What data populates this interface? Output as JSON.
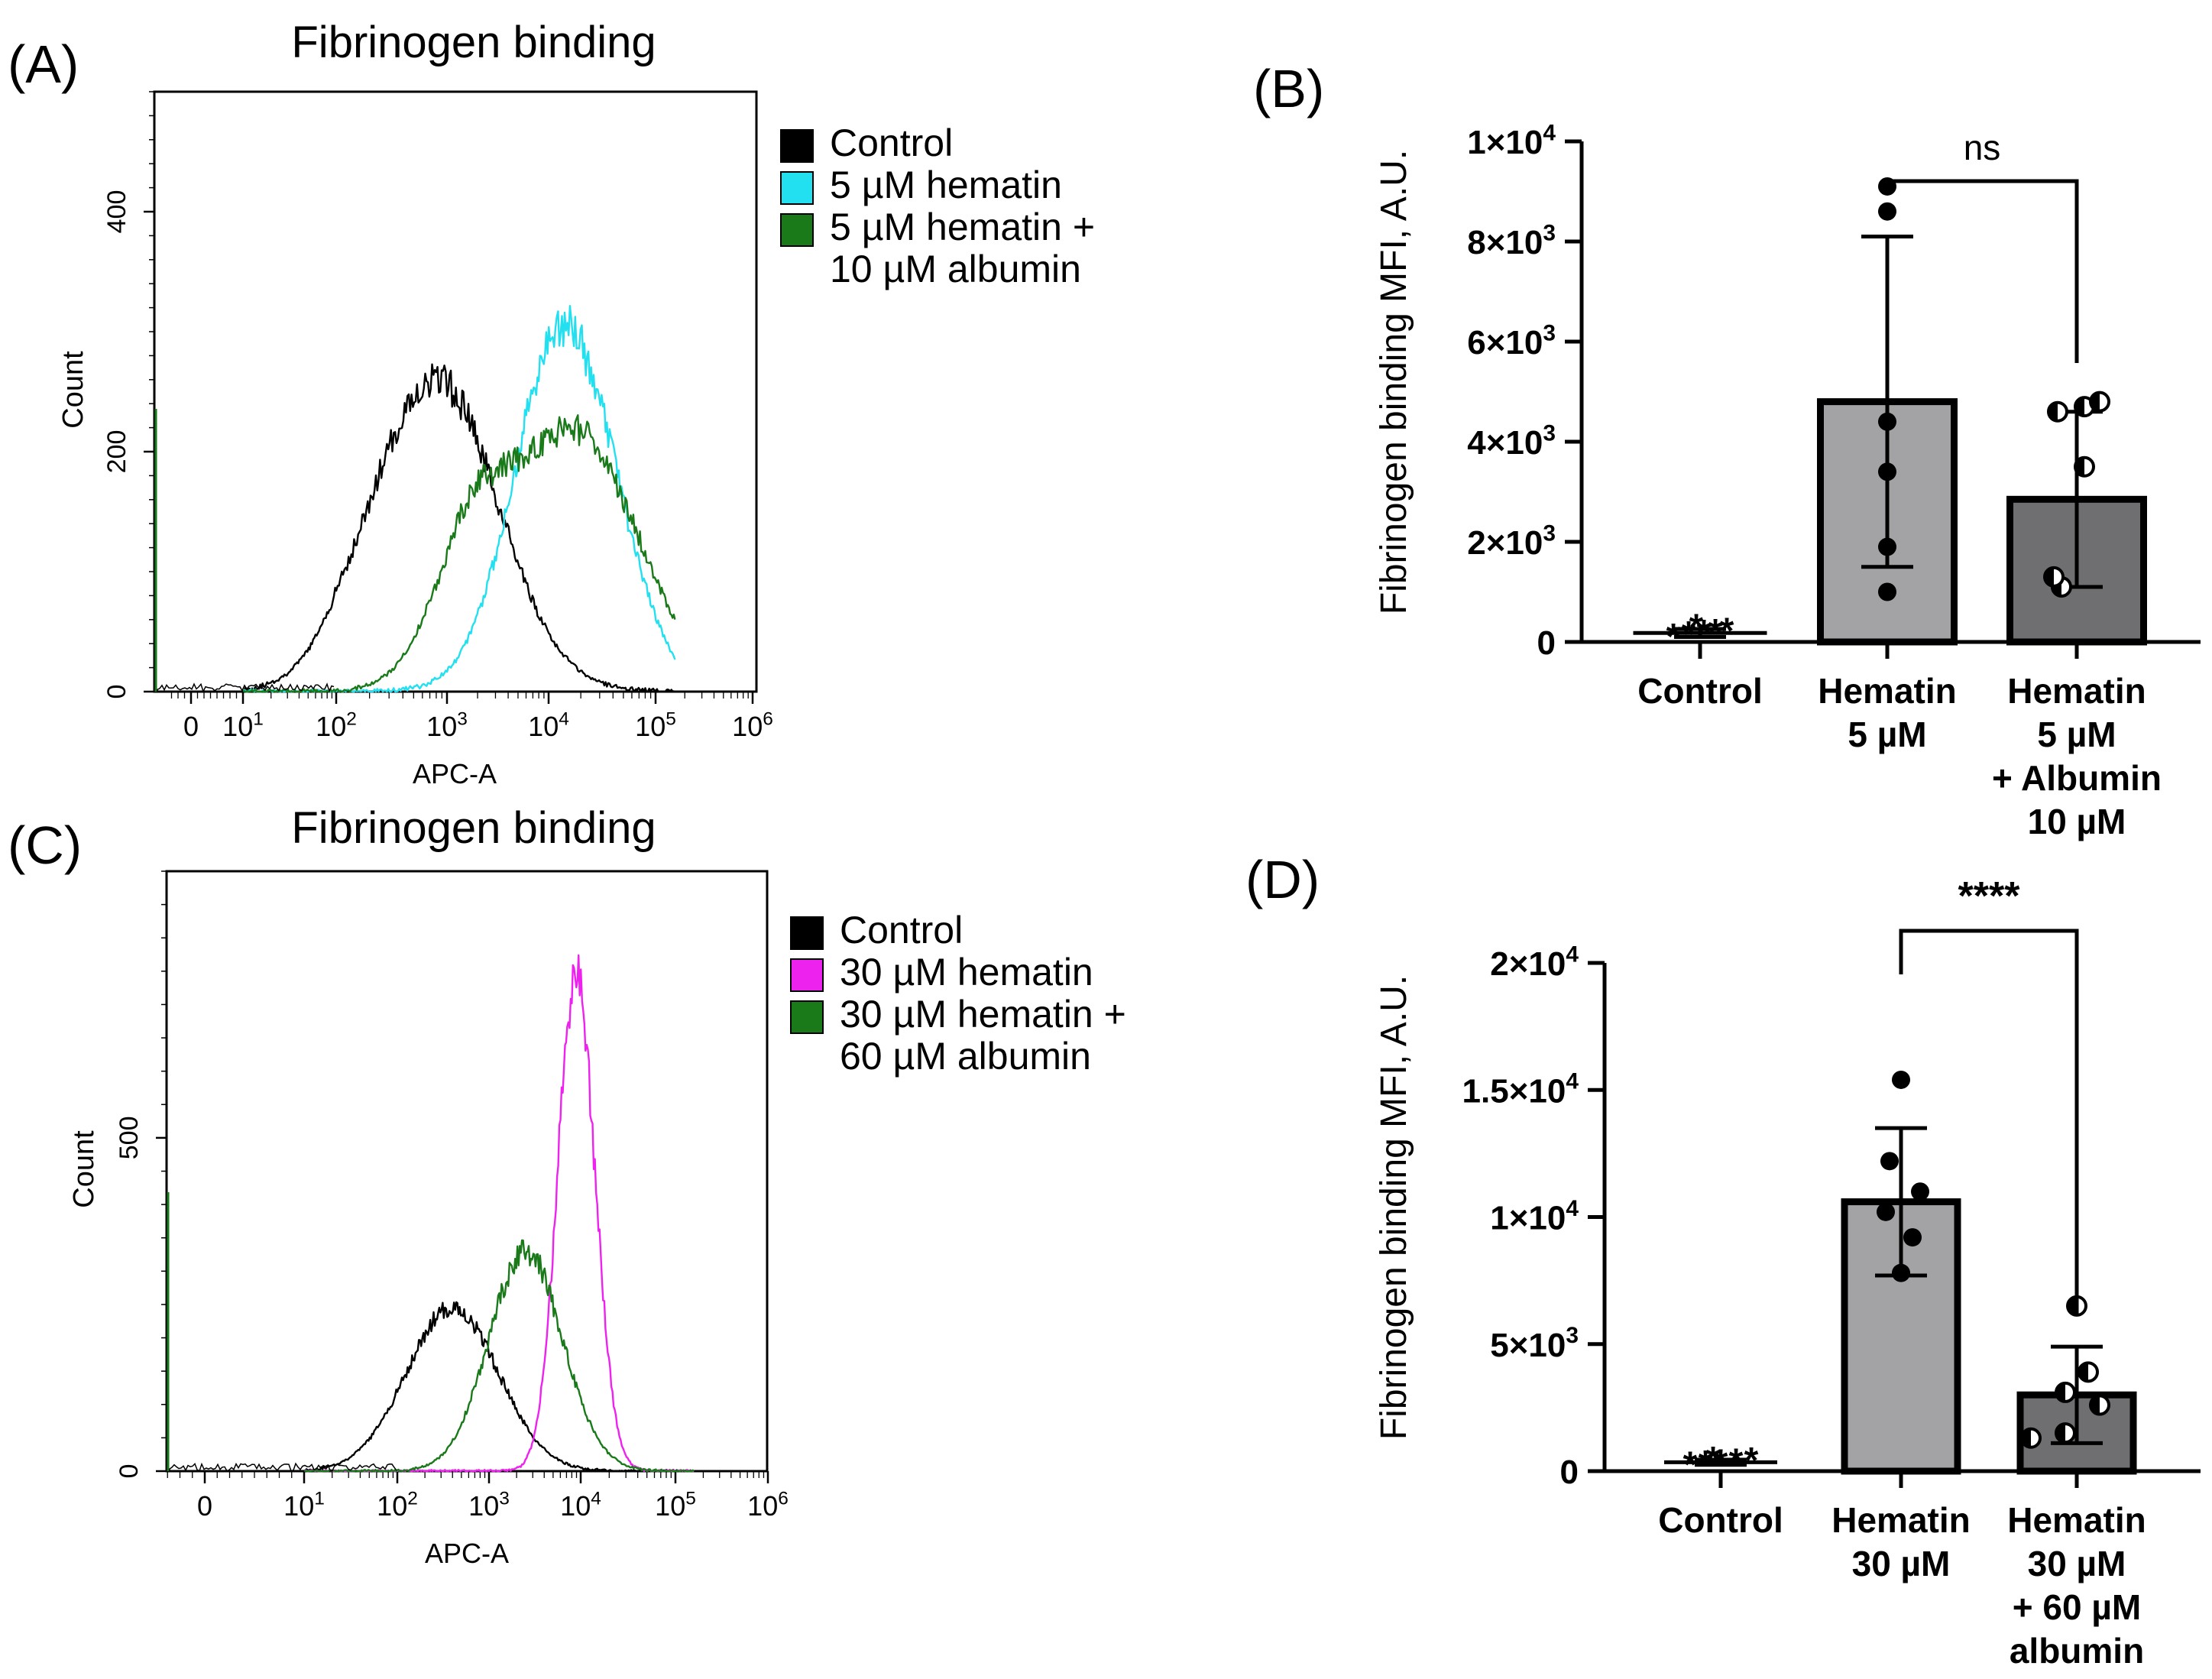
{
  "panels": {
    "A": {
      "letter": "(A)",
      "title": "Fibrinogen binding",
      "xlabel": "APC-A",
      "ylabel": "Count",
      "yticks": [
        "0",
        "200",
        "400"
      ],
      "xticks": [
        "0",
        "10^1",
        "10^2",
        "10^3",
        "10^4",
        "10^5",
        "10^6"
      ],
      "legend": [
        {
          "label": "Control",
          "color": "#000000"
        },
        {
          "label": "5 µM hematin",
          "color": "#22e0f0"
        },
        {
          "label": "5 µM hematin +",
          "color": "#1a7a1a"
        },
        {
          "label": "10 µM albumin",
          "color": null
        }
      ]
    },
    "B": {
      "letter": "(B)",
      "ylabel": "Fibrinogen binding MFI, A.U.",
      "yticks": [
        "0",
        "2×10^3",
        "4×10^3",
        "6×10^3",
        "8×10^3",
        "1×10^4"
      ],
      "xlabels": [
        [
          "Control"
        ],
        [
          "Hematin",
          "5 µM"
        ],
        [
          "Hematin",
          "5 µM",
          "+ Albumin",
          "10 µM"
        ]
      ],
      "significance": "ns"
    },
    "C": {
      "letter": "(C)",
      "title": "Fibrinogen binding",
      "xlabel": "APC-A",
      "ylabel": "Count",
      "yticks": [
        "0",
        "500"
      ],
      "xticks": [
        "0",
        "10^1",
        "10^2",
        "10^3",
        "10^4",
        "10^5",
        "10^6"
      ],
      "legend": [
        {
          "label": "Control",
          "color": "#000000"
        },
        {
          "label": "30 µM hematin",
          "color": "#ee22ee"
        },
        {
          "label": "30 µM hematin +",
          "color": "#1a7a1a"
        },
        {
          "label": "60 µM albumin",
          "color": null
        }
      ]
    },
    "D": {
      "letter": "(D)",
      "ylabel": "Fibrinogen binding MFI, A.U.",
      "yticks": [
        "0",
        "5×10^3",
        "1×10^4",
        "1.5×10^4",
        "2×10^4"
      ],
      "xlabels": [
        [
          "Control"
        ],
        [
          "Hematin",
          "30 µM"
        ],
        [
          "Hematin",
          "30 µM",
          "+ 60 µM",
          "albumin"
        ]
      ],
      "significance": "****"
    }
  },
  "chart_data": [
    {
      "panel": "A",
      "type": "histogram",
      "title": "Fibrinogen binding",
      "xlabel": "APC-A",
      "ylabel": "Count",
      "xscale": "biexponential",
      "ylim": [
        0,
        500
      ],
      "series": [
        {
          "name": "Control",
          "color": "#000000",
          "peak_x_log10": 2.9,
          "peak_count": 260,
          "width_log10": 0.6
        },
        {
          "name": "5 µM hematin",
          "color": "#22e0f0",
          "peak_x_log10": 4.15,
          "peak_count": 305,
          "width_log10": 0.48
        },
        {
          "name": "5 µM hematin + 10 µM albumin",
          "color": "#1a7a1a",
          "peak_x_log10": 4.2,
          "peak_count": 220,
          "width_log10": 0.62,
          "shoulder_x_log10": 3.4,
          "shoulder_count": 180
        }
      ]
    },
    {
      "panel": "B",
      "type": "bar",
      "ylabel": "Fibrinogen binding MFI, A.U.",
      "ylim": [
        0,
        10000
      ],
      "categories": [
        "Control",
        "Hematin 5 µM",
        "Hematin 5 µM + Albumin 10 µM"
      ],
      "values": [
        180,
        4800,
        2850
      ],
      "errors": [
        80,
        3300,
        1750
      ],
      "points": [
        [
          110,
          150,
          180,
          200,
          220,
          300
        ],
        [
          1000,
          1900,
          3400,
          4400,
          8600,
          9100
        ],
        [
          1100,
          1300,
          3500,
          4600,
          4700,
          4800
        ]
      ],
      "comparison": {
        "from": 1,
        "to": 2,
        "label": "ns"
      }
    },
    {
      "panel": "C",
      "type": "histogram",
      "title": "Fibrinogen binding",
      "xlabel": "APC-A",
      "ylabel": "Count",
      "xscale": "biexponential",
      "ylim": [
        0,
        900
      ],
      "series": [
        {
          "name": "Control",
          "color": "#000000",
          "peak_x_log10": 2.6,
          "peak_count": 245,
          "width_log10": 0.5
        },
        {
          "name": "30 µM hematin",
          "color": "#ee22ee",
          "peak_x_log10": 3.95,
          "peak_count": 745,
          "width_log10": 0.2
        },
        {
          "name": "30 µM hematin + 60 µM albumin",
          "color": "#1a7a1a",
          "peak_x_log10": 3.4,
          "peak_count": 330,
          "width_log10": 0.4
        }
      ]
    },
    {
      "panel": "D",
      "type": "bar",
      "ylabel": "Fibrinogen binding MFI, A.U.",
      "ylim": [
        0,
        20000
      ],
      "categories": [
        "Control",
        "Hematin 30 µM",
        "Hematin 30 µM + 60 µM albumin"
      ],
      "values": [
        350,
        10600,
        3000
      ],
      "errors": [
        100,
        2900,
        1900
      ],
      "points": [
        [
          250,
          300,
          350,
          380,
          420,
          450
        ],
        [
          7800,
          9200,
          10200,
          11000,
          12200,
          15400
        ],
        [
          1300,
          1500,
          2600,
          3100,
          3900,
          6500
        ]
      ],
      "comparison": {
        "from": 1,
        "to": 2,
        "label": "****"
      }
    }
  ]
}
